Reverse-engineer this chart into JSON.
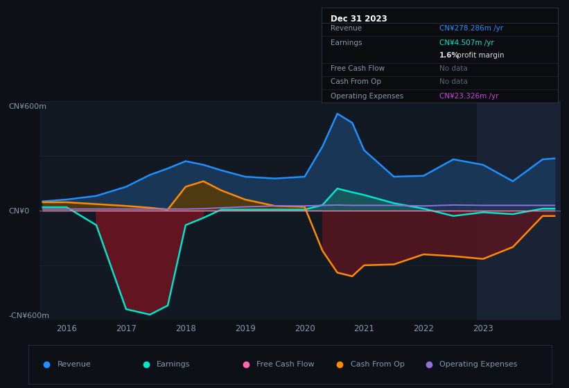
{
  "bg_color": "#0d1117",
  "plot_bg_color": "#131922",
  "highlight_bg": "#1a2235",
  "title": "Dec 31 2023",
  "ylim": [
    -600,
    600
  ],
  "ylabel_top": "CN¥600m",
  "ylabel_bottom": "-CN¥600m",
  "ylabel_zero": "CN¥0",
  "xlim_left": 2015.55,
  "xlim_right": 2024.3,
  "years": [
    2015.6,
    2016.0,
    2016.5,
    2017.0,
    2017.4,
    2017.7,
    2018.0,
    2018.3,
    2018.6,
    2019.0,
    2019.5,
    2020.0,
    2020.3,
    2020.55,
    2020.8,
    2021.0,
    2021.5,
    2022.0,
    2022.5,
    2023.0,
    2023.5,
    2024.0,
    2024.2
  ],
  "revenue": [
    50,
    60,
    80,
    130,
    195,
    230,
    270,
    250,
    220,
    185,
    175,
    185,
    350,
    530,
    480,
    330,
    185,
    190,
    280,
    250,
    160,
    280,
    285
  ],
  "earnings": [
    18,
    18,
    -80,
    -540,
    -570,
    -520,
    -80,
    -40,
    5,
    5,
    5,
    5,
    30,
    120,
    100,
    85,
    40,
    10,
    -30,
    -10,
    -20,
    10,
    10
  ],
  "free_cash_flow": [
    0,
    0,
    0,
    0,
    0,
    0,
    0,
    0,
    0,
    0,
    0,
    0,
    0,
    0,
    0,
    0,
    0,
    0,
    0,
    0,
    0,
    0,
    0
  ],
  "cash_from_op": [
    45,
    45,
    35,
    25,
    15,
    5,
    130,
    160,
    110,
    60,
    25,
    20,
    -220,
    -340,
    -360,
    -300,
    -295,
    -240,
    -250,
    -265,
    -200,
    -30,
    -30
  ],
  "operating_exp": [
    8,
    8,
    8,
    8,
    8,
    8,
    8,
    10,
    15,
    20,
    25,
    25,
    28,
    30,
    28,
    28,
    28,
    25,
    30,
    28,
    28,
    28,
    28
  ],
  "revenue_color": "#1e90ff",
  "revenue_fill": "#1a3a5c",
  "earnings_color": "#00e5cc",
  "earnings_fill_pos": "#1a5c5c",
  "earnings_fill_neg": "#6b1520",
  "cash_from_op_color": "#ff8c00",
  "cash_from_op_fill_pos": "#5c3a00",
  "cash_from_op_fill_neg": "#5c1520",
  "operating_exp_color": "#9370db",
  "free_cash_flow_color": "#ff69b4",
  "grid_color": "#1e2535",
  "zero_line_color": "#cccccc",
  "text_color": "#8899aa",
  "info_box_bg": "#0a0c10",
  "info_box_border": "#2a3040",
  "revenue_val_color": "#1e90ff",
  "earnings_val_color": "#00e5cc",
  "opex_val_color": "#cc44dd",
  "no_data_color": "#556677",
  "margin_bold_color": "#dddddd",
  "info_box": {
    "title": "Dec 31 2023",
    "rows": [
      {
        "label": "Revenue",
        "value": "CN¥278.286m /yr",
        "label_color": "#8899aa",
        "value_color": "#1e90ff"
      },
      {
        "label": "Earnings",
        "value": "CN¥4.507m /yr",
        "label_color": "#8899aa",
        "value_color": "#00e5cc"
      },
      {
        "label": "",
        "value": "1.6% profit margin",
        "label_color": "#8899aa",
        "value_color": "#dddddd"
      },
      {
        "label": "Free Cash Flow",
        "value": "No data",
        "label_color": "#8899aa",
        "value_color": "#556677"
      },
      {
        "label": "Cash From Op",
        "value": "No data",
        "label_color": "#8899aa",
        "value_color": "#556677"
      },
      {
        "label": "Operating Expenses",
        "value": "CN¥23.326m /yr",
        "label_color": "#8899aa",
        "value_color": "#cc44dd"
      }
    ]
  },
  "legend": [
    {
      "label": "Revenue",
      "color": "#1e90ff"
    },
    {
      "label": "Earnings",
      "color": "#00e5cc"
    },
    {
      "label": "Free Cash Flow",
      "color": "#ff69b4"
    },
    {
      "label": "Cash From Op",
      "color": "#ff8c00"
    },
    {
      "label": "Operating Expenses",
      "color": "#9370db"
    }
  ]
}
